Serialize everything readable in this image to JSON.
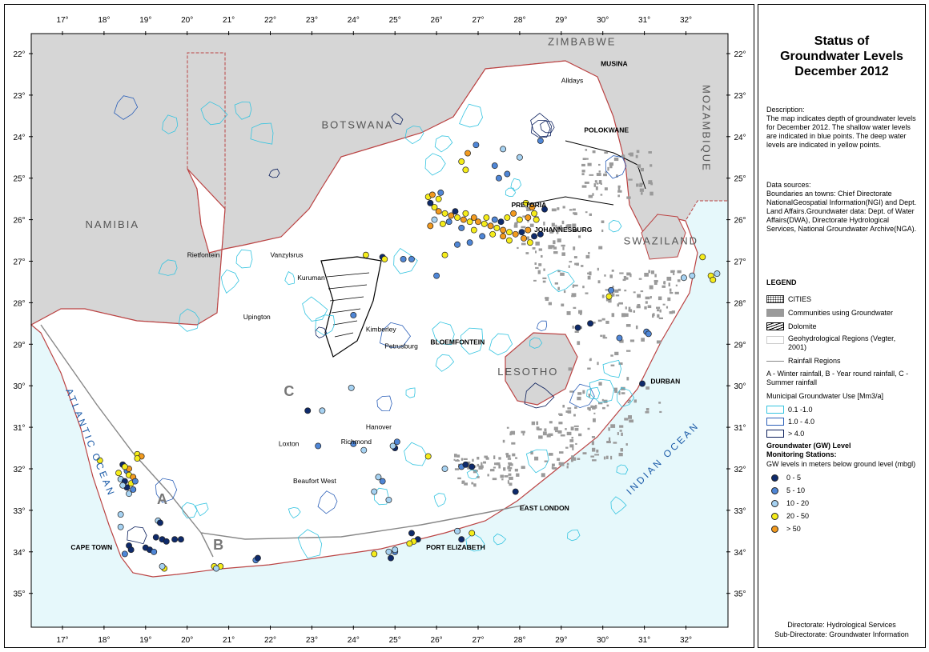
{
  "title": {
    "line1": "Status of",
    "line2": "Groundwater Levels",
    "line3": "December 2012"
  },
  "description": {
    "heading": "Description:",
    "text": "The map indicates depth of groundwater levels for December 2012. The shallow water levels are indicated in blue points. The deep water levels are indicated in yellow points."
  },
  "data_sources": {
    "heading": "Data sources:",
    "text": "Boundaries an towns: Chief Directorate NationalGeospatial Information(NGI) and Dept. Land Affairs.Groundwater data: Dept. of Water Affairs(DWA), Directorate Hydrological Services, National Groundwater Archive(NGA)."
  },
  "legend": {
    "heading": "LEGEND",
    "cities": "CITIES",
    "communities": "Communities using Groundwater",
    "dolomite": "Dolomite",
    "geohydro": "Geohydrological Regions (Vegter, 2001)",
    "rainfall": "Rainfall Regions",
    "rainfall_note": "A - Winter rainfall, B - Year round rainfall, C - Summer rainfall",
    "municipal_heading": "Municipal Groundwater Use [Mm3/a]",
    "municipal": [
      {
        "label": "0.1 -1.0",
        "color": "#35c4e0"
      },
      {
        "label": "1.0 - 4.0",
        "color": "#2b5fb8"
      },
      {
        "label": "> 4.0",
        "color": "#0b1f5c"
      }
    ],
    "gw_heading_1": "Groundwater (GW) Level",
    "gw_heading_2": "Monitoring Stations:",
    "gw_sub": "GW levels in meters below ground level (mbgl)",
    "gw_classes": [
      {
        "label": "0 - 5",
        "color": "#0e2a6b"
      },
      {
        "label": "5 - 10",
        "color": "#4f86d6"
      },
      {
        "label": "10 - 20",
        "color": "#a6d2f2"
      },
      {
        "label": "20 - 50",
        "color": "#f5ec1a"
      },
      {
        "label": "> 50",
        "color": "#f29a1e"
      }
    ]
  },
  "footer": {
    "line1": "Directorate: Hydrological Services",
    "line2": "Sub-Directorate: Groundwater Information"
  },
  "axes": {
    "lon_ticks": [
      "17°",
      "18°",
      "19°",
      "20°",
      "21°",
      "22°",
      "23°",
      "24°",
      "25°",
      "26°",
      "27°",
      "28°",
      "29°",
      "30°",
      "31°",
      "32°"
    ],
    "lat_ticks": [
      "22°",
      "23°",
      "24°",
      "25°",
      "26°",
      "27°",
      "28°",
      "29°",
      "30°",
      "31°",
      "32°",
      "33°",
      "34°",
      "35°"
    ]
  },
  "map_labels": {
    "countries": [
      {
        "name": "ZIMBABWE",
        "lon": 29.5,
        "lat": -21.8
      },
      {
        "name": "BOTSWANA",
        "lon": 24.1,
        "lat": -23.8
      },
      {
        "name": "NAMIBIA",
        "lon": 18.2,
        "lat": -26.2
      },
      {
        "name": "LESOTHO",
        "lon": 28.2,
        "lat": -29.75
      },
      {
        "name": "SWAZILAND",
        "lon": 31.4,
        "lat": -26.6
      }
    ],
    "mozambique": "MOZAMBIQUE",
    "atlantic": "ATLANTIC OCEAN",
    "indian": "INDIAN OCEAN",
    "regions": [
      {
        "name": "A",
        "lon": 19.4,
        "lat": -32.85
      },
      {
        "name": "B",
        "lon": 20.75,
        "lat": -33.95
      },
      {
        "name": "C",
        "lon": 22.45,
        "lat": -30.25
      }
    ],
    "cities": [
      {
        "name": "PRETORIA",
        "lon": 27.8,
        "lat": -25.7,
        "caps": true
      },
      {
        "name": "JOHANNESBURG",
        "lon": 28.35,
        "lat": -26.3,
        "caps": true
      },
      {
        "name": "POLOKWANE",
        "lon": 29.55,
        "lat": -23.9,
        "caps": true
      },
      {
        "name": "MUSINA",
        "lon": 29.95,
        "lat": -22.3,
        "caps": true
      },
      {
        "name": "Alldays",
        "lon": 29.0,
        "lat": -22.7,
        "caps": false
      },
      {
        "name": "BLOEMFONTEIN",
        "lon": 25.85,
        "lat": -29.0,
        "caps": true
      },
      {
        "name": "DURBAN",
        "lon": 31.15,
        "lat": -29.95,
        "caps": true
      },
      {
        "name": "EAST LONDON",
        "lon": 28.0,
        "lat": -33.0,
        "caps": true
      },
      {
        "name": "PORT ELIZABETH",
        "lon": 25.75,
        "lat": -33.95,
        "caps": true
      },
      {
        "name": "CAPE TOWN",
        "lon": 17.2,
        "lat": -33.95,
        "caps": true
      },
      {
        "name": "Rietfontein",
        "lon": 20.0,
        "lat": -26.9,
        "caps": false
      },
      {
        "name": "Vanzylsrus",
        "lon": 22.0,
        "lat": -26.9,
        "caps": false
      },
      {
        "name": "Kuruman",
        "lon": 22.65,
        "lat": -27.45,
        "caps": false
      },
      {
        "name": "Upington",
        "lon": 21.35,
        "lat": -28.4,
        "caps": false
      },
      {
        "name": "Kimberley",
        "lon": 24.3,
        "lat": -28.7,
        "caps": false
      },
      {
        "name": "Petrusburg",
        "lon": 24.75,
        "lat": -29.1,
        "caps": false
      },
      {
        "name": "Hanover",
        "lon": 24.3,
        "lat": -31.05,
        "caps": false
      },
      {
        "name": "Richmond",
        "lon": 23.7,
        "lat": -31.4,
        "caps": false
      },
      {
        "name": "Loxton",
        "lon": 22.2,
        "lat": -31.45,
        "caps": false
      },
      {
        "name": "Beaufort West",
        "lon": 22.55,
        "lat": -32.35,
        "caps": false
      }
    ]
  },
  "stations": [
    [
      18.45,
      -31.9,
      0
    ],
    [
      18.55,
      -32.05,
      1
    ],
    [
      18.6,
      -32.15,
      3
    ],
    [
      18.7,
      -32.2,
      4
    ],
    [
      18.4,
      -32.25,
      2
    ],
    [
      18.5,
      -32.3,
      0
    ],
    [
      18.65,
      -32.35,
      3
    ],
    [
      18.75,
      -32.3,
      1
    ],
    [
      18.55,
      -32.45,
      0
    ],
    [
      18.7,
      -32.5,
      1
    ],
    [
      18.35,
      -32.1,
      3
    ],
    [
      18.8,
      -31.65,
      3
    ],
    [
      18.9,
      -31.7,
      4
    ],
    [
      18.8,
      -31.75,
      3
    ],
    [
      17.9,
      -31.8,
      3
    ],
    [
      18.6,
      -32.0,
      4
    ],
    [
      18.5,
      -31.95,
      3
    ],
    [
      18.45,
      -32.4,
      2
    ],
    [
      18.6,
      -32.6,
      2
    ],
    [
      18.4,
      -33.1,
      2
    ],
    [
      18.4,
      -33.4,
      2
    ],
    [
      18.6,
      -33.85,
      0
    ],
    [
      18.65,
      -33.95,
      0
    ],
    [
      18.5,
      -34.05,
      1
    ],
    [
      19.0,
      -33.9,
      0
    ],
    [
      19.1,
      -33.95,
      0
    ],
    [
      19.2,
      -34.0,
      1
    ],
    [
      19.4,
      -33.7,
      0
    ],
    [
      19.5,
      -33.75,
      0
    ],
    [
      19.7,
      -33.7,
      0
    ],
    [
      19.85,
      -33.7,
      0
    ],
    [
      19.25,
      -33.65,
      0
    ],
    [
      19.3,
      -33.25,
      2
    ],
    [
      19.35,
      -33.3,
      0
    ],
    [
      19.45,
      -34.4,
      3
    ],
    [
      19.4,
      -34.35,
      2
    ],
    [
      20.65,
      -34.35,
      3
    ],
    [
      20.8,
      -34.35,
      3
    ],
    [
      20.7,
      -34.4,
      2
    ],
    [
      21.65,
      -34.2,
      1
    ],
    [
      21.7,
      -34.15,
      0
    ],
    [
      22.9,
      -30.6,
      0
    ],
    [
      23.25,
      -30.6,
      2
    ],
    [
      23.15,
      -31.45,
      1
    ],
    [
      23.95,
      -30.05,
      2
    ],
    [
      24.0,
      -31.4,
      1
    ],
    [
      24.25,
      -31.55,
      2
    ],
    [
      24.6,
      -32.2,
      2
    ],
    [
      24.7,
      -32.3,
      1
    ],
    [
      24.5,
      -32.55,
      2
    ],
    [
      24.85,
      -32.75,
      2
    ],
    [
      25.0,
      -31.5,
      0
    ],
    [
      25.05,
      -31.35,
      1
    ],
    [
      24.95,
      -31.45,
      2
    ],
    [
      25.8,
      -31.7,
      3
    ],
    [
      26.2,
      -32.0,
      2
    ],
    [
      26.6,
      -31.95,
      1
    ],
    [
      26.7,
      -31.9,
      0
    ],
    [
      26.85,
      -31.95,
      0
    ],
    [
      27.9,
      -32.55,
      0
    ],
    [
      26.5,
      -33.5,
      2
    ],
    [
      26.85,
      -33.55,
      3
    ],
    [
      26.6,
      -33.7,
      0
    ],
    [
      25.4,
      -33.55,
      0
    ],
    [
      25.55,
      -33.7,
      0
    ],
    [
      25.45,
      -33.75,
      3
    ],
    [
      25.35,
      -33.8,
      3
    ],
    [
      25.0,
      -34.0,
      1
    ],
    [
      24.85,
      -34.0,
      2
    ],
    [
      24.5,
      -34.05,
      3
    ],
    [
      24.9,
      -34.15,
      0
    ],
    [
      25.0,
      -33.95,
      2
    ],
    [
      24.3,
      -26.85,
      3
    ],
    [
      24.7,
      -26.9,
      0
    ],
    [
      24.75,
      -26.95,
      3
    ],
    [
      24.0,
      -28.3,
      1
    ],
    [
      25.2,
      -26.95,
      1
    ],
    [
      25.8,
      -25.45,
      3
    ],
    [
      25.85,
      -25.6,
      0
    ],
    [
      25.95,
      -25.7,
      3
    ],
    [
      26.05,
      -25.8,
      4
    ],
    [
      26.2,
      -25.85,
      3
    ],
    [
      26.35,
      -25.9,
      4
    ],
    [
      26.5,
      -25.95,
      3
    ],
    [
      26.65,
      -26.0,
      4
    ],
    [
      26.8,
      -26.05,
      3
    ],
    [
      27.0,
      -26.05,
      4
    ],
    [
      27.15,
      -26.1,
      3
    ],
    [
      27.3,
      -26.15,
      4
    ],
    [
      27.45,
      -26.2,
      3
    ],
    [
      27.6,
      -26.25,
      4
    ],
    [
      27.75,
      -26.3,
      3
    ],
    [
      27.9,
      -26.35,
      4
    ],
    [
      28.05,
      -26.3,
      0
    ],
    [
      28.2,
      -26.25,
      4
    ],
    [
      28.35,
      -26.4,
      0
    ],
    [
      28.0,
      -26.0,
      3
    ],
    [
      28.2,
      -25.95,
      4
    ],
    [
      28.35,
      -25.85,
      3
    ],
    [
      27.85,
      -25.85,
      4
    ],
    [
      27.7,
      -25.95,
      3
    ],
    [
      27.55,
      -26.05,
      0
    ],
    [
      27.4,
      -26.0,
      1
    ],
    [
      27.2,
      -25.95,
      3
    ],
    [
      26.9,
      -25.95,
      4
    ],
    [
      26.7,
      -25.85,
      3
    ],
    [
      26.45,
      -25.8,
      0
    ],
    [
      26.3,
      -26.05,
      1
    ],
    [
      26.15,
      -26.1,
      3
    ],
    [
      25.95,
      -26.0,
      2
    ],
    [
      26.6,
      -26.2,
      1
    ],
    [
      26.9,
      -26.25,
      3
    ],
    [
      27.1,
      -26.4,
      1
    ],
    [
      27.35,
      -26.35,
      3
    ],
    [
      27.6,
      -26.4,
      4
    ],
    [
      27.75,
      -26.5,
      3
    ],
    [
      28.1,
      -26.45,
      4
    ],
    [
      28.25,
      -26.55,
      3
    ],
    [
      28.5,
      -26.35,
      0
    ],
    [
      28.6,
      -25.75,
      0
    ],
    [
      28.4,
      -26.0,
      3
    ],
    [
      28.3,
      -25.7,
      4
    ],
    [
      28.15,
      -25.6,
      3
    ],
    [
      26.05,
      -25.5,
      3
    ],
    [
      25.9,
      -25.4,
      4
    ],
    [
      25.85,
      -26.15,
      4
    ],
    [
      26.1,
      -25.35,
      1
    ],
    [
      26.6,
      -24.6,
      3
    ],
    [
      26.75,
      -24.4,
      4
    ],
    [
      26.7,
      -24.8,
      3
    ],
    [
      26.95,
      -24.2,
      1
    ],
    [
      27.4,
      -24.7,
      1
    ],
    [
      27.5,
      -25.0,
      1
    ],
    [
      27.7,
      -24.9,
      1
    ],
    [
      27.6,
      -24.3,
      2
    ],
    [
      28.0,
      -24.5,
      2
    ],
    [
      28.5,
      -24.1,
      1
    ],
    [
      26.0,
      -27.35,
      1
    ],
    [
      25.4,
      -26.95,
      1
    ],
    [
      26.2,
      -26.85,
      3
    ],
    [
      26.5,
      -26.6,
      1
    ],
    [
      26.8,
      -26.55,
      1
    ],
    [
      29.4,
      -28.6,
      0
    ],
    [
      29.7,
      -28.5,
      0
    ],
    [
      30.2,
      -27.7,
      1
    ],
    [
      30.15,
      -27.85,
      3
    ],
    [
      30.4,
      -28.85,
      1
    ],
    [
      30.95,
      -29.95,
      0
    ],
    [
      31.05,
      -28.7,
      1
    ],
    [
      31.1,
      -28.75,
      1
    ],
    [
      31.95,
      -27.4,
      2
    ],
    [
      32.15,
      -27.35,
      2
    ],
    [
      32.4,
      -26.9,
      3
    ],
    [
      32.6,
      -27.35,
      3
    ],
    [
      32.75,
      -27.3,
      2
    ],
    [
      32.65,
      -27.45,
      3
    ]
  ]
}
